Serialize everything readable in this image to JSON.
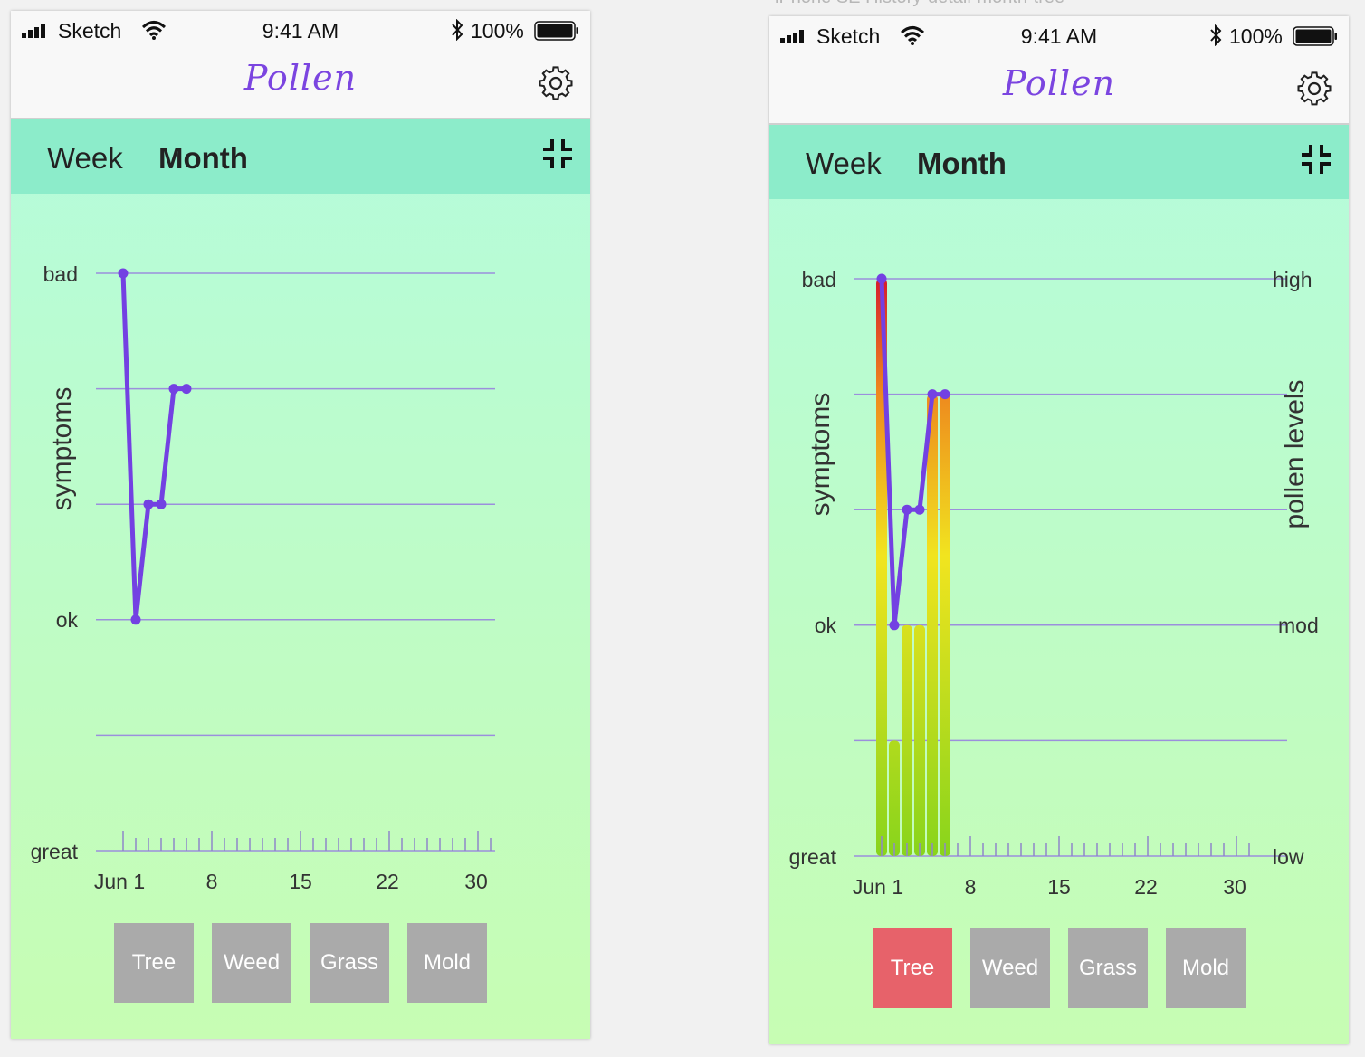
{
  "artboards": [
    {
      "label": "",
      "status": {
        "carrier": "Sketch",
        "time": "9:41 AM",
        "battery": "100%"
      },
      "app_title": "Pollen",
      "tabs": {
        "week": "Week",
        "month": "Month"
      },
      "y_axis_title": "symptoms",
      "y_labels": {
        "bad": "bad",
        "ok": "ok",
        "great": "great"
      },
      "right_axis_title": "",
      "right_labels": [],
      "x_labels": [
        "Jun 1",
        "8",
        "15",
        "22",
        "30"
      ],
      "filters": [
        "Tree",
        "Weed",
        "Grass",
        "Mold"
      ],
      "active_filter": "",
      "icons": [
        "signal-icon",
        "wifi-icon",
        "bluetooth-icon",
        "battery-icon",
        "gear-icon",
        "collapse-icon"
      ]
    },
    {
      "label": "iPhone SE History-detail-month-tree",
      "status": {
        "carrier": "Sketch",
        "time": "9:41 AM",
        "battery": "100%"
      },
      "app_title": "Pollen",
      "tabs": {
        "week": "Week",
        "month": "Month"
      },
      "y_axis_title": "symptoms",
      "y_labels": {
        "bad": "bad",
        "ok": "ok",
        "great": "great"
      },
      "right_axis_title": "pollen levels",
      "right_labels": [
        "high",
        "mod",
        "low"
      ],
      "x_labels": [
        "Jun 1",
        "8",
        "15",
        "22",
        "30"
      ],
      "filters": [
        "Tree",
        "Weed",
        "Grass",
        "Mold"
      ],
      "active_filter": "Tree",
      "icons": [
        "signal-icon",
        "wifi-icon",
        "bluetooth-icon",
        "battery-icon",
        "gear-icon",
        "collapse-icon"
      ]
    }
  ],
  "colors": {
    "accent": "#7b45e0",
    "tab_bar": "#8cecca",
    "filter_idle": "#aaaaaa",
    "filter_active": "#e7626a",
    "grid": "#9b8fdc"
  },
  "chart_data": [
    {
      "type": "line",
      "title": "",
      "xlabel": "",
      "ylabel": "symptoms",
      "x": [
        1,
        2,
        3,
        4,
        5,
        6
      ],
      "series": [
        {
          "name": "symptoms",
          "values": [
            5,
            2,
            3,
            3,
            4,
            4
          ]
        }
      ],
      "ylim": [
        0,
        5
      ],
      "xlim": [
        1,
        30
      ],
      "yticks": [
        0,
        1,
        2,
        3,
        4,
        5
      ],
      "ytick_labels": {
        "0": "great",
        "2": "ok",
        "5": "bad"
      },
      "xticks": [
        1,
        8,
        15,
        22,
        30
      ],
      "xtick_labels": [
        "Jun 1",
        "8",
        "15",
        "22",
        "30"
      ],
      "grid": true
    },
    {
      "type": "bar",
      "title": "",
      "xlabel": "",
      "ylabel": "symptoms",
      "x": [
        1,
        2,
        3,
        4,
        5,
        6
      ],
      "series": [
        {
          "name": "symptoms",
          "kind": "line",
          "values": [
            5,
            2,
            3,
            3,
            4,
            4
          ]
        },
        {
          "name": "pollen levels (Tree)",
          "kind": "bar",
          "values": [
            5,
            1,
            2,
            2,
            4,
            4
          ]
        }
      ],
      "ylim": [
        0,
        5
      ],
      "xlim": [
        1,
        30
      ],
      "yticks": [
        0,
        1,
        2,
        3,
        4,
        5
      ],
      "ytick_labels": {
        "0": "great",
        "2": "ok",
        "5": "bad"
      },
      "right_ytick_labels": {
        "0": "low",
        "2": "mod",
        "5": "high"
      },
      "right_ylabel": "pollen levels",
      "xticks": [
        1,
        8,
        15,
        22,
        30
      ],
      "xtick_labels": [
        "Jun 1",
        "8",
        "15",
        "22",
        "30"
      ],
      "grid": true
    }
  ]
}
